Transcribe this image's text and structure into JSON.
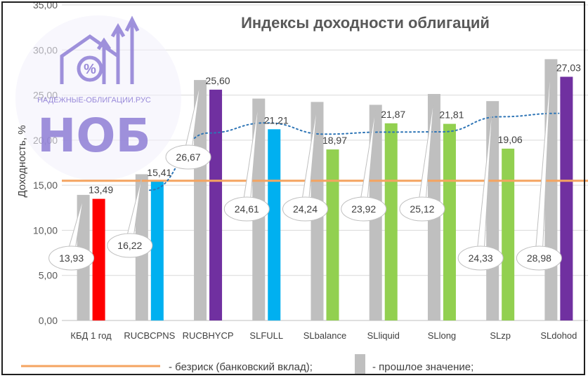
{
  "chart_data": {
    "type": "bar",
    "title": "Индексы доходности облигаций",
    "ylabel": "Доходность, %",
    "xlabel": "",
    "ylim": [
      0,
      35
    ],
    "yticks": [
      "0,00",
      "5,00",
      "10,00",
      "15,00",
      "20,00",
      "25,00",
      "30,00",
      "35,00"
    ],
    "grid": true,
    "categories": [
      "КБД 1 год",
      "RUCBCPNS",
      "RUCBHYCP",
      "SLFULL",
      "SLbalance",
      "SLliquid",
      "SLlong",
      "SLzp",
      "SLdohod"
    ],
    "previous": {
      "values": [
        13.93,
        16.22,
        26.67,
        24.61,
        24.24,
        23.92,
        25.12,
        24.33,
        28.98
      ],
      "labels": [
        "13,93",
        "16,22",
        "26,67",
        "24,61",
        "24,24",
        "23,92",
        "25,12",
        "24,33",
        "28,98"
      ]
    },
    "current": {
      "values": [
        13.49,
        15.41,
        25.6,
        21.21,
        18.97,
        21.87,
        21.81,
        19.06,
        27.03
      ],
      "labels": [
        "13,49",
        "15,41",
        "25,60",
        "21,21",
        "18,97",
        "21,87",
        "21,81",
        "19,06",
        "27,03"
      ],
      "colors": [
        "#ff0000",
        "#00b0f0",
        "#7030a0",
        "#00b0f0",
        "#92d050",
        "#92d050",
        "#92d050",
        "#92d050",
        "#7030a0"
      ]
    },
    "risk_free": 15.5,
    "trend": "polynomial-dotted",
    "legend_position": "bottom",
    "legend": [
      {
        "label": "- безриск (банковский вклад);",
        "color": "#f4a460",
        "kind": "line"
      },
      {
        "label": "- прошлое значение;",
        "color": "#bfbfbf",
        "kind": "bar"
      }
    ],
    "colors": {
      "previous": "#bfbfbf",
      "risk_free": "#f4a460",
      "trend": "#2e75b6"
    }
  },
  "watermark": {
    "site": "НАДЕЖНЫЕ-ОБЛИГАЦИИ.РУС",
    "abbr": "НОБ",
    "color": "#8f7fd6"
  }
}
